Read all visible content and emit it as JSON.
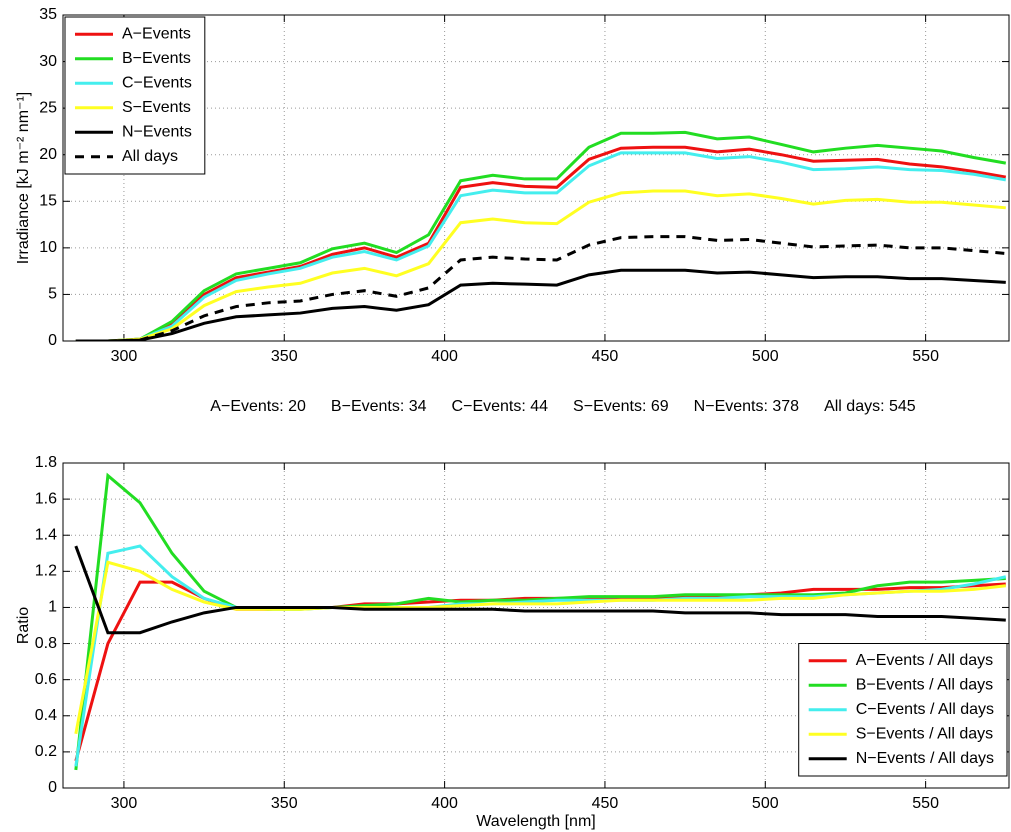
{
  "chart_data": [
    {
      "type": "line",
      "ylabel": "Irradiance [kJ m⁻² nm⁻¹]",
      "x": [
        285,
        295,
        305,
        315,
        325,
        335,
        345,
        355,
        365,
        375,
        385,
        395,
        405,
        415,
        425,
        435,
        445,
        455,
        465,
        475,
        485,
        495,
        505,
        515,
        525,
        535,
        545,
        555,
        565,
        575
      ],
      "xlim": [
        281,
        576
      ],
      "xticks": [
        300,
        350,
        400,
        450,
        500,
        550
      ],
      "ylim": [
        0,
        35
      ],
      "yticks": [
        0,
        5,
        10,
        15,
        20,
        25,
        30,
        35
      ],
      "grid": true,
      "legend": "upper left",
      "series": [
        {
          "name": "A−Events",
          "color": "#ee1111",
          "linestyle": "solid",
          "values": [
            0,
            0,
            0.2,
            1.8,
            5,
            6.8,
            7.4,
            8,
            9.3,
            10,
            9,
            10.5,
            16.5,
            17,
            16.6,
            16.5,
            19.5,
            20.7,
            20.8,
            20.8,
            20.3,
            20.6,
            20,
            19.3,
            19.4,
            19.5,
            19,
            18.7,
            18.2,
            17.6
          ]
        },
        {
          "name": "B−Events",
          "color": "#22dd22",
          "linestyle": "solid",
          "values": [
            0,
            0,
            0.2,
            2.1,
            5.4,
            7.2,
            7.8,
            8.4,
            9.9,
            10.5,
            9.5,
            11.4,
            17.2,
            17.8,
            17.4,
            17.4,
            20.8,
            22.3,
            22.3,
            22.4,
            21.7,
            21.9,
            21.1,
            20.3,
            20.7,
            21,
            20.7,
            20.4,
            19.7,
            19.1
          ]
        },
        {
          "name": "C−Events",
          "color": "#44eeee",
          "linestyle": "solid",
          "values": [
            0,
            0,
            0.2,
            1.6,
            4.7,
            6.5,
            7.2,
            7.8,
            9,
            9.6,
            8.7,
            10.2,
            15.6,
            16.2,
            15.9,
            15.9,
            18.8,
            20.2,
            20.2,
            20.2,
            19.6,
            19.8,
            19.2,
            18.4,
            18.5,
            18.7,
            18.4,
            18.3,
            17.9,
            17.3
          ]
        },
        {
          "name": "S−Events",
          "color": "#ffff22",
          "linestyle": "solid",
          "values": [
            0,
            0,
            0.2,
            1.3,
            3.8,
            5.3,
            5.8,
            6.2,
            7.3,
            7.8,
            7,
            8.3,
            12.7,
            13.1,
            12.7,
            12.6,
            14.9,
            15.9,
            16.1,
            16.1,
            15.6,
            15.8,
            15.3,
            14.7,
            15.1,
            15.2,
            14.9,
            14.9,
            14.6,
            14.3
          ]
        },
        {
          "name": "N−Events",
          "color": "#000000",
          "linestyle": "solid",
          "values": [
            0,
            0,
            0.1,
            0.8,
            1.9,
            2.6,
            2.8,
            3,
            3.5,
            3.7,
            3.3,
            3.9,
            6,
            6.2,
            6.1,
            6,
            7.1,
            7.6,
            7.6,
            7.6,
            7.3,
            7.4,
            7.1,
            6.8,
            6.9,
            6.9,
            6.7,
            6.7,
            6.5,
            6.3
          ]
        },
        {
          "name": "All days",
          "color": "#000000",
          "linestyle": "dashed",
          "values": [
            0,
            0,
            0.1,
            1.1,
            2.7,
            3.7,
            4.1,
            4.3,
            5,
            5.4,
            4.8,
            5.7,
            8.7,
            9,
            8.8,
            8.7,
            10.3,
            11.1,
            11.2,
            11.2,
            10.8,
            10.9,
            10.5,
            10.1,
            10.2,
            10.3,
            10,
            10,
            9.7,
            9.4
          ]
        }
      ],
      "annotations": [
        "A−Events: 20",
        "B−Events: 34",
        "C−Events: 44",
        "S−Events: 69",
        "N−Events: 378",
        "All days: 545"
      ]
    },
    {
      "type": "line",
      "xlabel": "Wavelength [nm]",
      "ylabel": "Ratio",
      "x": [
        285,
        295,
        305,
        315,
        325,
        335,
        345,
        355,
        365,
        375,
        385,
        395,
        405,
        415,
        425,
        435,
        445,
        455,
        465,
        475,
        485,
        495,
        505,
        515,
        525,
        535,
        545,
        555,
        565,
        575
      ],
      "xlim": [
        281,
        576
      ],
      "xticks": [
        300,
        350,
        400,
        450,
        500,
        550
      ],
      "ylim": [
        0,
        1.8
      ],
      "yticks": [
        0,
        0.2,
        0.4,
        0.6,
        0.8,
        1,
        1.2,
        1.4,
        1.6,
        1.8
      ],
      "grid": true,
      "legend": "lower right",
      "series": [
        {
          "name": "A−Events / All days",
          "color": "#ee1111",
          "linestyle": "solid",
          "values": [
            0.15,
            0.8,
            1.14,
            1.14,
            1.05,
            0.99,
            0.99,
            1.0,
            1.0,
            1.02,
            1.02,
            1.03,
            1.04,
            1.04,
            1.05,
            1.05,
            1.05,
            1.05,
            1.05,
            1.06,
            1.06,
            1.07,
            1.08,
            1.1,
            1.1,
            1.1,
            1.11,
            1.11,
            1.12,
            1.13
          ]
        },
        {
          "name": "B−Events / All days",
          "color": "#22dd22",
          "linestyle": "solid",
          "values": [
            0.1,
            1.73,
            1.58,
            1.3,
            1.09,
            1.0,
            0.99,
            0.99,
            1.0,
            1.01,
            1.02,
            1.05,
            1.03,
            1.04,
            1.04,
            1.05,
            1.06,
            1.06,
            1.06,
            1.07,
            1.07,
            1.07,
            1.07,
            1.07,
            1.08,
            1.12,
            1.14,
            1.14,
            1.15,
            1.16
          ]
        },
        {
          "name": "C−Events / All days",
          "color": "#44eeee",
          "linestyle": "solid",
          "values": [
            0.12,
            1.3,
            1.34,
            1.17,
            1.05,
            1.0,
            1.0,
            1.0,
            1.0,
            1.0,
            1.0,
            1.0,
            1.02,
            1.02,
            1.03,
            1.04,
            1.04,
            1.04,
            1.04,
            1.05,
            1.05,
            1.06,
            1.06,
            1.06,
            1.07,
            1.08,
            1.09,
            1.1,
            1.13,
            1.17
          ]
        },
        {
          "name": "S−Events / All days",
          "color": "#ffff22",
          "linestyle": "solid",
          "values": [
            0.3,
            1.25,
            1.2,
            1.1,
            1.03,
            0.99,
            0.99,
            0.99,
            1.0,
            1.0,
            1.0,
            1.0,
            1.01,
            1.02,
            1.02,
            1.02,
            1.03,
            1.04,
            1.04,
            1.04,
            1.04,
            1.04,
            1.05,
            1.05,
            1.07,
            1.08,
            1.09,
            1.09,
            1.1,
            1.12
          ]
        },
        {
          "name": "N−Events / All days",
          "color": "#000000",
          "linestyle": "solid",
          "values": [
            1.34,
            0.86,
            0.86,
            0.92,
            0.97,
            1.0,
            1.0,
            1.0,
            1.0,
            0.99,
            0.99,
            0.99,
            0.99,
            0.99,
            0.98,
            0.98,
            0.98,
            0.98,
            0.98,
            0.97,
            0.97,
            0.97,
            0.96,
            0.96,
            0.96,
            0.95,
            0.95,
            0.95,
            0.94,
            0.93
          ]
        }
      ]
    }
  ]
}
